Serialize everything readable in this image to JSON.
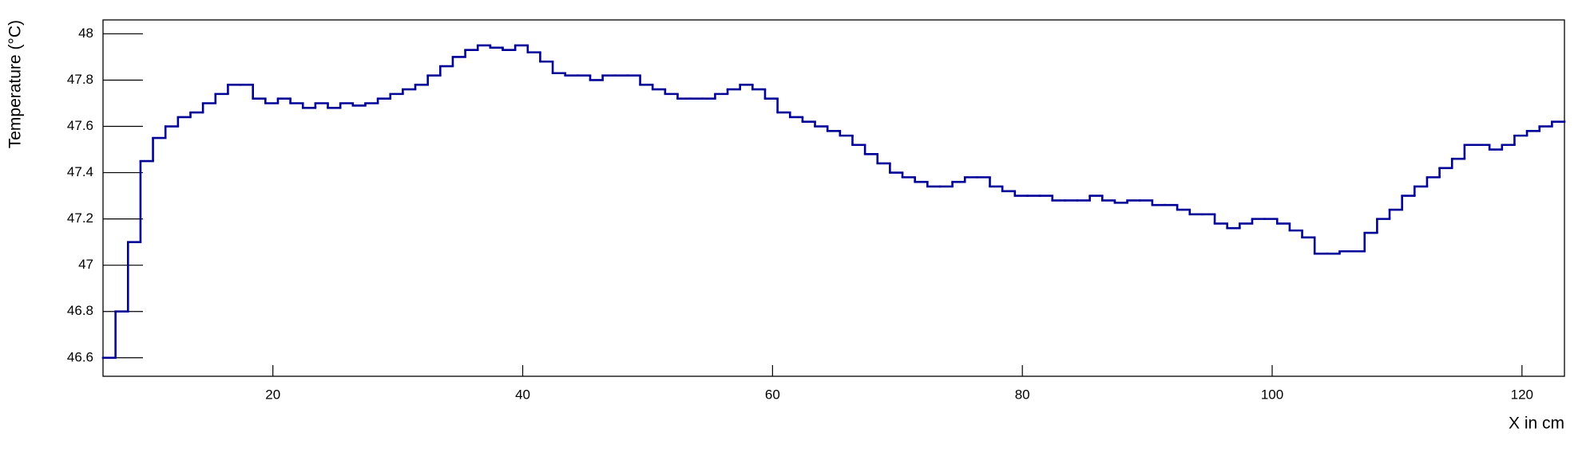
{
  "chart_data": {
    "type": "histogram",
    "xlabel": "X in cm",
    "ylabel": "Temperature (°C)",
    "color": "#000099",
    "xlim": [
      6.4,
      123.4
    ],
    "ylim": [
      46.52,
      48.06
    ],
    "xticks": [
      20,
      40,
      60,
      80,
      100,
      120
    ],
    "yticks": [
      46.6,
      46.8,
      47,
      47.2,
      47.4,
      47.6,
      47.8,
      48
    ],
    "bins": [
      6.4,
      7.4,
      8.4,
      9.4,
      10.4,
      11.4,
      12.4,
      13.4,
      14.4,
      15.4,
      16.4,
      17.4,
      18.4,
      19.4,
      20.4,
      21.4,
      22.4,
      23.4,
      24.4,
      25.4,
      26.4,
      27.4,
      28.4,
      29.4,
      30.4,
      31.4,
      32.4,
      33.4,
      34.4,
      35.4,
      36.4,
      37.4,
      38.4,
      39.4,
      40.4,
      41.4,
      42.4,
      43.4,
      44.4,
      45.4,
      46.4,
      47.4,
      48.4,
      49.4,
      50.4,
      51.4,
      52.4,
      53.4,
      54.4,
      55.4,
      56.4,
      57.4,
      58.4,
      59.4,
      60.4,
      61.4,
      62.4,
      63.4,
      64.4,
      65.4,
      66.4,
      67.4,
      68.4,
      69.4,
      70.4,
      71.4,
      72.4,
      73.4,
      74.4,
      75.4,
      76.4,
      77.4,
      78.4,
      79.4,
      80.4,
      81.4,
      82.4,
      83.4,
      84.4,
      85.4,
      86.4,
      87.4,
      88.4,
      89.4,
      90.4,
      91.4,
      92.4,
      93.4,
      94.4,
      95.4,
      96.4,
      97.4,
      98.4,
      99.4,
      100.4,
      101.4,
      102.4,
      103.4,
      104.4,
      105.4,
      106.4,
      107.4,
      108.4,
      109.4,
      110.4,
      111.4,
      112.4,
      113.4,
      114.4,
      115.4,
      116.4,
      117.4,
      118.4,
      119.4,
      120.4,
      121.4,
      122.4,
      123.4
    ],
    "values": [
      46.6,
      46.8,
      47.1,
      47.45,
      47.55,
      47.6,
      47.64,
      47.66,
      47.7,
      47.74,
      47.78,
      47.78,
      47.72,
      47.7,
      47.72,
      47.7,
      47.68,
      47.7,
      47.68,
      47.7,
      47.69,
      47.7,
      47.72,
      47.74,
      47.76,
      47.78,
      47.82,
      47.86,
      47.9,
      47.93,
      47.95,
      47.94,
      47.93,
      47.95,
      47.92,
      47.88,
      47.83,
      47.82,
      47.82,
      47.8,
      47.82,
      47.82,
      47.82,
      47.78,
      47.76,
      47.74,
      47.72,
      47.72,
      47.72,
      47.74,
      47.76,
      47.78,
      47.76,
      47.72,
      47.66,
      47.64,
      47.62,
      47.6,
      47.58,
      47.56,
      47.52,
      47.48,
      47.44,
      47.4,
      47.38,
      47.36,
      47.34,
      47.34,
      47.36,
      47.38,
      47.38,
      47.34,
      47.32,
      47.3,
      47.3,
      47.3,
      47.28,
      47.28,
      47.28,
      47.3,
      47.28,
      47.27,
      47.28,
      47.28,
      47.26,
      47.26,
      47.24,
      47.22,
      47.22,
      47.18,
      47.16,
      47.18,
      47.2,
      47.2,
      47.18,
      47.15,
      47.12,
      47.05,
      47.05,
      47.06,
      47.06,
      47.14,
      47.2,
      47.24,
      47.3,
      47.34,
      47.38,
      47.42,
      47.46,
      47.52,
      47.52,
      47.5,
      47.52,
      47.56,
      47.58,
      47.6,
      47.62
    ]
  }
}
